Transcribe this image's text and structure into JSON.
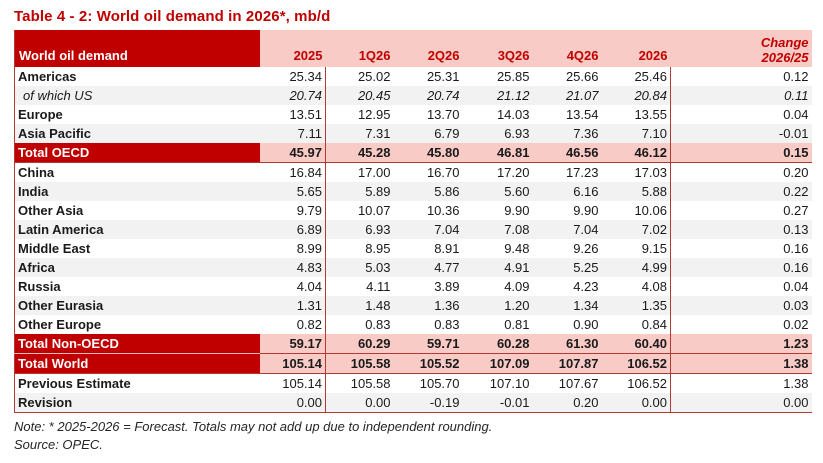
{
  "title": "Table 4 - 2: World oil demand in 2026*, mb/d",
  "colors": {
    "dark_red": "#c00000",
    "pink": "#f9cbc6",
    "stripe_gray": "#f2f2f2",
    "rule_red": "#b03b32",
    "text": "#1a1a1a"
  },
  "table": {
    "label_header": "World oil demand",
    "change_header": {
      "line1": "Change",
      "line2": "2026/25"
    },
    "columns": [
      "2025",
      "1Q26",
      "2Q26",
      "3Q26",
      "4Q26",
      "2026"
    ],
    "rows": [
      {
        "label": "Americas",
        "style": "plain",
        "values": [
          "25.34",
          "25.02",
          "25.31",
          "25.85",
          "25.66",
          "25.46",
          "0.12"
        ]
      },
      {
        "label": "of which US",
        "style": "italic",
        "values": [
          "20.74",
          "20.45",
          "20.74",
          "21.12",
          "21.07",
          "20.84",
          "0.11"
        ]
      },
      {
        "label": "Europe",
        "style": "plain",
        "values": [
          "13.51",
          "12.95",
          "13.70",
          "14.03",
          "13.54",
          "13.55",
          "0.04"
        ]
      },
      {
        "label": "Asia Pacific",
        "style": "plain",
        "values": [
          "7.11",
          "7.31",
          "6.79",
          "6.93",
          "7.36",
          "7.10",
          "-0.01"
        ]
      },
      {
        "label": "Total OECD",
        "style": "total",
        "rule_below": true,
        "values": [
          "45.97",
          "45.28",
          "45.80",
          "46.81",
          "46.56",
          "46.12",
          "0.15"
        ]
      },
      {
        "label": "China",
        "style": "plain",
        "values": [
          "16.84",
          "17.00",
          "16.70",
          "17.20",
          "17.23",
          "17.03",
          "0.20"
        ]
      },
      {
        "label": "India",
        "style": "plain",
        "values": [
          "5.65",
          "5.89",
          "5.86",
          "5.60",
          "6.16",
          "5.88",
          "0.22"
        ]
      },
      {
        "label": "Other Asia",
        "style": "plain",
        "values": [
          "9.79",
          "10.07",
          "10.36",
          "9.90",
          "9.90",
          "10.06",
          "0.27"
        ]
      },
      {
        "label": "Latin America",
        "style": "plain",
        "values": [
          "6.89",
          "6.93",
          "7.04",
          "7.08",
          "7.04",
          "7.02",
          "0.13"
        ]
      },
      {
        "label": "Middle East",
        "style": "plain",
        "values": [
          "8.99",
          "8.95",
          "8.91",
          "9.48",
          "9.26",
          "9.15",
          "0.16"
        ]
      },
      {
        "label": "Africa",
        "style": "plain",
        "values": [
          "4.83",
          "5.03",
          "4.77",
          "4.91",
          "5.25",
          "4.99",
          "0.16"
        ]
      },
      {
        "label": "Russia",
        "style": "plain",
        "values": [
          "4.04",
          "4.11",
          "3.89",
          "4.09",
          "4.23",
          "4.08",
          "0.04"
        ]
      },
      {
        "label": "Other Eurasia",
        "style": "plain",
        "values": [
          "1.31",
          "1.48",
          "1.36",
          "1.20",
          "1.34",
          "1.35",
          "0.03"
        ]
      },
      {
        "label": "Other Europe",
        "style": "plain",
        "values": [
          "0.82",
          "0.83",
          "0.83",
          "0.81",
          "0.90",
          "0.84",
          "0.02"
        ]
      },
      {
        "label": "Total Non-OECD",
        "style": "total",
        "values": [
          "59.17",
          "60.29",
          "59.71",
          "60.28",
          "61.30",
          "60.40",
          "1.23"
        ]
      },
      {
        "label": "Total World",
        "style": "total",
        "rule_below": true,
        "values": [
          "105.14",
          "105.58",
          "105.52",
          "107.09",
          "107.87",
          "106.52",
          "1.38"
        ]
      },
      {
        "label": "Previous Estimate",
        "style": "plain",
        "values": [
          "105.14",
          "105.58",
          "105.70",
          "107.10",
          "107.67",
          "106.52",
          "1.38"
        ]
      },
      {
        "label": "Revision",
        "style": "plain",
        "rule_below": true,
        "values": [
          "0.00",
          "0.00",
          "-0.19",
          "-0.01",
          "0.20",
          "0.00",
          "0.00"
        ]
      }
    ]
  },
  "note": "Note: * 2025-2026 = Forecast. Totals may not add up due to independent rounding.",
  "source": "Source: OPEC."
}
